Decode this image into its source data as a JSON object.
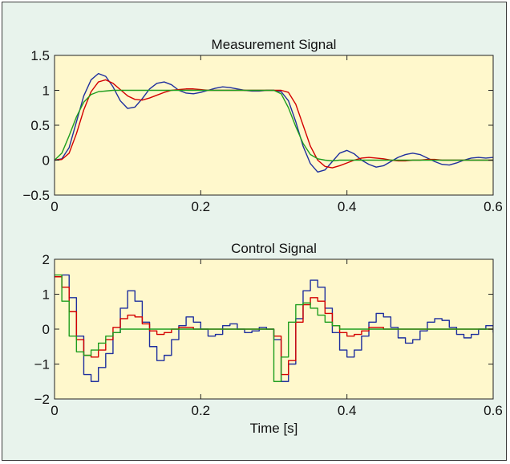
{
  "chart_data": [
    {
      "type": "line",
      "title": "Measurement Signal",
      "xlabel": "",
      "ylabel": "",
      "xlim": [
        0,
        0.6
      ],
      "ylim": [
        -0.5,
        1.5
      ],
      "xticks": [
        "0",
        "0.2",
        "0.4",
        "0.6"
      ],
      "xtick_values": [
        0,
        0.2,
        0.4,
        0.6
      ],
      "yticks": [
        "−0.5",
        "0",
        "0.5",
        "1",
        "1.5"
      ],
      "ytick_values": [
        -0.5,
        0,
        0.5,
        1,
        1.5
      ],
      "grid": false,
      "plot_background": "#fff8cc",
      "series": [
        {
          "color": "#1f2f9e",
          "x": [
            0,
            0.01,
            0.02,
            0.03,
            0.04,
            0.05,
            0.06,
            0.07,
            0.08,
            0.09,
            0.1,
            0.11,
            0.12,
            0.13,
            0.14,
            0.15,
            0.16,
            0.17,
            0.18,
            0.19,
            0.2,
            0.21,
            0.22,
            0.23,
            0.24,
            0.25,
            0.26,
            0.27,
            0.28,
            0.29,
            0.3,
            0.31,
            0.32,
            0.33,
            0.34,
            0.35,
            0.36,
            0.37,
            0.38,
            0.39,
            0.4,
            0.41,
            0.42,
            0.43,
            0.44,
            0.45,
            0.46,
            0.47,
            0.48,
            0.49,
            0.5,
            0.51,
            0.52,
            0.53,
            0.54,
            0.55,
            0.56,
            0.57,
            0.58,
            0.59,
            0.6
          ],
          "y": [
            0,
            0.02,
            0.18,
            0.55,
            0.92,
            1.15,
            1.24,
            1.2,
            1.05,
            0.85,
            0.74,
            0.76,
            0.88,
            1.02,
            1.1,
            1.12,
            1.08,
            1.0,
            0.96,
            0.95,
            0.97,
            1.0,
            1.03,
            1.05,
            1.04,
            1.02,
            1.0,
            0.99,
            0.99,
            1.0,
            1.0,
            0.98,
            0.85,
            0.55,
            0.2,
            -0.05,
            -0.17,
            -0.14,
            -0.02,
            0.1,
            0.14,
            0.09,
            0.0,
            -0.06,
            -0.1,
            -0.08,
            -0.02,
            0.04,
            0.08,
            0.1,
            0.08,
            0.03,
            -0.02,
            -0.06,
            -0.07,
            -0.04,
            0.0,
            0.03,
            0.04,
            0.03,
            0.04
          ]
        },
        {
          "color": "#d40000",
          "x": [
            0,
            0.01,
            0.02,
            0.03,
            0.04,
            0.05,
            0.06,
            0.07,
            0.08,
            0.09,
            0.1,
            0.11,
            0.12,
            0.13,
            0.14,
            0.15,
            0.16,
            0.17,
            0.18,
            0.19,
            0.2,
            0.21,
            0.22,
            0.23,
            0.24,
            0.25,
            0.26,
            0.27,
            0.28,
            0.29,
            0.3,
            0.31,
            0.32,
            0.33,
            0.34,
            0.35,
            0.36,
            0.37,
            0.38,
            0.39,
            0.4,
            0.41,
            0.42,
            0.43,
            0.44,
            0.45,
            0.46,
            0.47,
            0.48,
            0.49,
            0.5,
            0.51,
            0.52,
            0.53,
            0.54,
            0.55,
            0.56,
            0.57,
            0.58,
            0.59,
            0.6
          ],
          "y": [
            0,
            0.01,
            0.1,
            0.38,
            0.72,
            0.98,
            1.12,
            1.15,
            1.1,
            1.01,
            0.92,
            0.87,
            0.86,
            0.89,
            0.93,
            0.97,
            1.0,
            1.01,
            1.02,
            1.02,
            1.01,
            1.0,
            1.0,
            1.0,
            1.0,
            1.0,
            1.0,
            1.0,
            1.0,
            1.0,
            1.0,
            1.0,
            0.97,
            0.8,
            0.5,
            0.2,
            0.0,
            -0.09,
            -0.11,
            -0.08,
            -0.04,
            0.0,
            0.03,
            0.04,
            0.03,
            0.02,
            0.0,
            -0.01,
            -0.01,
            0.0,
            0.0,
            0.01,
            0.01,
            0.0,
            0.0,
            0.0,
            0.0,
            0.0,
            0.0,
            0.0,
            0.0
          ]
        },
        {
          "color": "#1f9e1f",
          "x": [
            0,
            0.01,
            0.02,
            0.03,
            0.04,
            0.05,
            0.06,
            0.07,
            0.08,
            0.09,
            0.1,
            0.12,
            0.14,
            0.16,
            0.18,
            0.2,
            0.22,
            0.24,
            0.26,
            0.28,
            0.3,
            0.31,
            0.32,
            0.33,
            0.34,
            0.35,
            0.36,
            0.37,
            0.38,
            0.39,
            0.4,
            0.42,
            0.44,
            0.46,
            0.48,
            0.5,
            0.52,
            0.54,
            0.56,
            0.58,
            0.6
          ],
          "y": [
            0,
            0.1,
            0.35,
            0.62,
            0.83,
            0.94,
            0.98,
            0.99,
            1.0,
            1.0,
            1.0,
            1.0,
            1.0,
            1.0,
            1.0,
            1.0,
            1.0,
            1.0,
            1.0,
            1.0,
            1.0,
            0.95,
            0.75,
            0.48,
            0.24,
            0.08,
            0.02,
            0.0,
            -0.01,
            0.0,
            0.0,
            0.0,
            0.0,
            0.0,
            0.0,
            0.0,
            0.0,
            0.0,
            0.0,
            0.0,
            0.0
          ]
        }
      ]
    },
    {
      "type": "line",
      "title": "Control Signal",
      "xlabel": "Time [s]",
      "ylabel": "",
      "xlim": [
        0,
        0.6
      ],
      "ylim": [
        -2,
        2
      ],
      "xticks": [
        "0",
        "0.2",
        "0.4",
        "0.6"
      ],
      "xtick_values": [
        0,
        0.2,
        0.4,
        0.6
      ],
      "yticks": [
        "−2",
        "−1",
        "0",
        "1",
        "2"
      ],
      "ytick_values": [
        -2,
        -1,
        0,
        1,
        2
      ],
      "grid": false,
      "step": true,
      "plot_background": "#fff8cc",
      "series": [
        {
          "color": "#1f2f9e",
          "x": [
            0,
            0.01,
            0.02,
            0.03,
            0.04,
            0.05,
            0.06,
            0.07,
            0.08,
            0.09,
            0.1,
            0.11,
            0.12,
            0.13,
            0.14,
            0.15,
            0.16,
            0.17,
            0.18,
            0.19,
            0.2,
            0.21,
            0.22,
            0.23,
            0.24,
            0.25,
            0.26,
            0.27,
            0.28,
            0.29,
            0.3,
            0.31,
            0.32,
            0.33,
            0.34,
            0.35,
            0.36,
            0.37,
            0.38,
            0.39,
            0.4,
            0.41,
            0.42,
            0.43,
            0.44,
            0.45,
            0.46,
            0.47,
            0.48,
            0.49,
            0.5,
            0.51,
            0.52,
            0.53,
            0.54,
            0.55,
            0.56,
            0.57,
            0.58,
            0.59,
            0.6
          ],
          "y": [
            1.5,
            1.55,
            0.9,
            -0.2,
            -1.3,
            -1.5,
            -1.1,
            -0.7,
            -0.1,
            0.6,
            1.1,
            0.8,
            0.2,
            -0.5,
            -0.9,
            -0.75,
            -0.3,
            0.1,
            0.35,
            0.2,
            0.0,
            -0.2,
            -0.15,
            0.1,
            0.15,
            0.0,
            -0.1,
            -0.05,
            0.05,
            0.0,
            -0.3,
            -1.5,
            -1.0,
            0.3,
            1.1,
            1.4,
            1.2,
            0.6,
            -0.1,
            -0.6,
            -0.8,
            -0.6,
            -0.2,
            0.2,
            0.45,
            0.35,
            0.05,
            -0.25,
            -0.4,
            -0.3,
            -0.05,
            0.2,
            0.3,
            0.25,
            0.05,
            -0.15,
            -0.25,
            -0.15,
            0.0,
            0.1,
            -0.1
          ]
        },
        {
          "color": "#d40000",
          "x": [
            0,
            0.01,
            0.02,
            0.03,
            0.04,
            0.05,
            0.06,
            0.07,
            0.08,
            0.09,
            0.1,
            0.11,
            0.12,
            0.13,
            0.14,
            0.15,
            0.16,
            0.17,
            0.18,
            0.19,
            0.2,
            0.21,
            0.22,
            0.23,
            0.24,
            0.25,
            0.26,
            0.27,
            0.28,
            0.29,
            0.3,
            0.31,
            0.32,
            0.33,
            0.34,
            0.35,
            0.36,
            0.37,
            0.38,
            0.39,
            0.4,
            0.41,
            0.42,
            0.43,
            0.44,
            0.45,
            0.46,
            0.47,
            0.48,
            0.49,
            0.5,
            0.51,
            0.52,
            0.53,
            0.54,
            0.55,
            0.56,
            0.57,
            0.58,
            0.59,
            0.6
          ],
          "y": [
            1.5,
            1.2,
            0.5,
            -0.3,
            -0.75,
            -0.8,
            -0.6,
            -0.3,
            0.05,
            0.3,
            0.4,
            0.35,
            0.15,
            -0.05,
            -0.15,
            -0.1,
            0.0,
            0.05,
            0.05,
            0.0,
            0.0,
            0.0,
            0.0,
            0.0,
            0.0,
            0.0,
            0.0,
            0.0,
            0.0,
            0.0,
            -0.2,
            -1.3,
            -0.9,
            0.2,
            0.7,
            0.9,
            0.8,
            0.45,
            0.1,
            -0.1,
            -0.2,
            -0.15,
            -0.05,
            0.05,
            0.05,
            0.0,
            0.0,
            0.0,
            0.0,
            0.0,
            0.0,
            0.0,
            0.0,
            0.0,
            0.0,
            0.0,
            0.0,
            0.0,
            0.0,
            0.0,
            0.0
          ]
        },
        {
          "color": "#1f9e1f",
          "x": [
            0,
            0.01,
            0.02,
            0.03,
            0.04,
            0.05,
            0.06,
            0.07,
            0.08,
            0.09,
            0.1,
            0.11,
            0.12,
            0.13,
            0.14,
            0.15,
            0.16,
            0.17,
            0.18,
            0.19,
            0.2,
            0.21,
            0.22,
            0.23,
            0.24,
            0.25,
            0.26,
            0.27,
            0.28,
            0.29,
            0.3,
            0.31,
            0.32,
            0.33,
            0.34,
            0.35,
            0.36,
            0.37,
            0.38,
            0.39,
            0.4,
            0.41,
            0.42,
            0.43,
            0.44,
            0.45,
            0.46,
            0.47,
            0.48,
            0.49,
            0.5,
            0.51,
            0.52,
            0.53,
            0.54,
            0.55,
            0.56,
            0.57,
            0.58,
            0.59,
            0.6
          ],
          "y": [
            1.55,
            0.8,
            -0.2,
            -0.65,
            -0.75,
            -0.6,
            -0.4,
            -0.2,
            -0.1,
            0.0,
            0.0,
            0.0,
            0.0,
            0.0,
            0.0,
            0.0,
            0.0,
            0.0,
            0.0,
            0.0,
            0.0,
            0.0,
            0.0,
            0.0,
            0.0,
            0.0,
            0.0,
            0.0,
            0.0,
            0.0,
            -1.5,
            -0.8,
            0.2,
            0.7,
            0.75,
            0.6,
            0.4,
            0.2,
            0.1,
            0.0,
            0.0,
            0.0,
            0.0,
            0.0,
            0.0,
            0.0,
            0.0,
            0.0,
            0.0,
            0.0,
            0.0,
            0.0,
            0.0,
            0.0,
            0.0,
            0.0,
            0.0,
            0.0,
            0.0,
            0.0,
            0.0
          ]
        }
      ]
    }
  ]
}
